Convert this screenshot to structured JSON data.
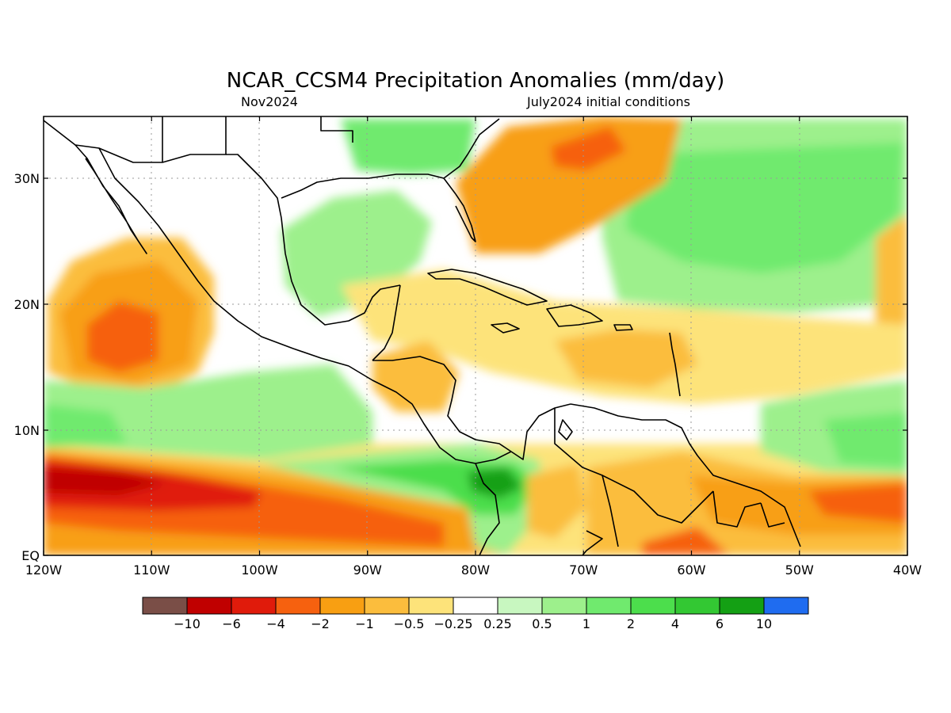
{
  "title": "NCAR_CCSM4 Precipitation Anomalies (mm/day)",
  "subtitle_left": "Nov2024",
  "subtitle_right": "July2024 initial conditions",
  "lon_ticks": [
    "120W",
    "110W",
    "100W",
    "90W",
    "80W",
    "70W",
    "60W",
    "50W",
    "40W"
  ],
  "lat_ticks": [
    "EQ",
    "10N",
    "20N",
    "30N"
  ],
  "colorbar": {
    "colors": [
      "#7a4e47",
      "#c00000",
      "#e01b0b",
      "#f6610f",
      "#f89f12",
      "#fbbd3d",
      "#fde37a",
      "#ffffff",
      "#c8f7c0",
      "#9df08c",
      "#70ea6e",
      "#4cde4c",
      "#33c833",
      "#14a014",
      "#1f6cf0"
    ],
    "labels": [
      "−10",
      "−6",
      "−4",
      "−2",
      "−1",
      "−0.5",
      "−0.25",
      "0.25",
      "0.5",
      "1",
      "2",
      "4",
      "6",
      "10"
    ]
  },
  "fields": {
    "ocean_base": "#ffffff",
    "dry_strong": "#c00000",
    "dry_high": "#e01b0b",
    "dry_mid": "#f6610f",
    "dry_low": "#f89f12",
    "dry_weak": "#fbbd3d",
    "dry_faint": "#fde37a",
    "wet_faint": "#c8f7c0",
    "wet_weak": "#9df08c",
    "wet_low": "#70ea6e",
    "wet_mid": "#4cde4c",
    "wet_high": "#33c833",
    "wet_strong": "#14a014"
  }
}
